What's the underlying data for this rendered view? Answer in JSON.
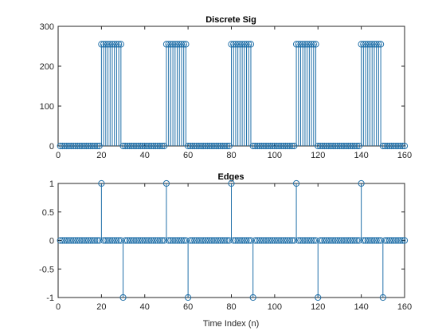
{
  "colors": {
    "series": "#1f6fa8",
    "axis": "#262626"
  },
  "chart_data": [
    {
      "type": "stem",
      "title": "Discrete Sig",
      "xlabel": "",
      "ylabel": "",
      "xlim": [
        0,
        160
      ],
      "ylim": [
        0,
        300
      ],
      "x_ticks": [
        0,
        20,
        40,
        60,
        80,
        100,
        120,
        140,
        160
      ],
      "y_ticks": [
        0,
        100,
        200,
        300
      ],
      "grid": false,
      "x": [
        1,
        2,
        3,
        4,
        5,
        6,
        7,
        8,
        9,
        10,
        11,
        12,
        13,
        14,
        15,
        16,
        17,
        18,
        19,
        20,
        21,
        22,
        23,
        24,
        25,
        26,
        27,
        28,
        29,
        30,
        31,
        32,
        33,
        34,
        35,
        36,
        37,
        38,
        39,
        40,
        41,
        42,
        43,
        44,
        45,
        46,
        47,
        48,
        49,
        50,
        51,
        52,
        53,
        54,
        55,
        56,
        57,
        58,
        59,
        60,
        61,
        62,
        63,
        64,
        65,
        66,
        67,
        68,
        69,
        70,
        71,
        72,
        73,
        74,
        75,
        76,
        77,
        78,
        79,
        80,
        81,
        82,
        83,
        84,
        85,
        86,
        87,
        88,
        89,
        90,
        91,
        92,
        93,
        94,
        95,
        96,
        97,
        98,
        99,
        100,
        101,
        102,
        103,
        104,
        105,
        106,
        107,
        108,
        109,
        110,
        111,
        112,
        113,
        114,
        115,
        116,
        117,
        118,
        119,
        120,
        121,
        122,
        123,
        124,
        125,
        126,
        127,
        128,
        129,
        130,
        131,
        132,
        133,
        134,
        135,
        136,
        137,
        138,
        139,
        140,
        141,
        142,
        143,
        144,
        145,
        146,
        147,
        148,
        149,
        150,
        151,
        152,
        153,
        154,
        155,
        156,
        157,
        158,
        159,
        160
      ],
      "values": [
        0,
        0,
        0,
        0,
        0,
        0,
        0,
        0,
        0,
        0,
        0,
        0,
        0,
        0,
        0,
        0,
        0,
        0,
        0,
        255,
        255,
        255,
        255,
        255,
        255,
        255,
        255,
        255,
        255,
        0,
        0,
        0,
        0,
        0,
        0,
        0,
        0,
        0,
        0,
        0,
        0,
        0,
        0,
        0,
        0,
        0,
        0,
        0,
        0,
        255,
        255,
        255,
        255,
        255,
        255,
        255,
        255,
        255,
        255,
        0,
        0,
        0,
        0,
        0,
        0,
        0,
        0,
        0,
        0,
        0,
        0,
        0,
        0,
        0,
        0,
        0,
        0,
        0,
        0,
        255,
        255,
        255,
        255,
        255,
        255,
        255,
        255,
        255,
        255,
        0,
        0,
        0,
        0,
        0,
        0,
        0,
        0,
        0,
        0,
        0,
        0,
        0,
        0,
        0,
        0,
        0,
        0,
        0,
        0,
        255,
        255,
        255,
        255,
        255,
        255,
        255,
        255,
        255,
        255,
        0,
        0,
        0,
        0,
        0,
        0,
        0,
        0,
        0,
        0,
        0,
        0,
        0,
        0,
        0,
        0,
        0,
        0,
        0,
        0,
        255,
        255,
        255,
        255,
        255,
        255,
        255,
        255,
        255,
        255,
        0,
        0,
        0,
        0,
        0,
        0,
        0,
        0,
        0,
        0,
        0
      ]
    },
    {
      "type": "stem",
      "title": "Edges",
      "xlabel": "Time Index (n)",
      "ylabel": "",
      "xlim": [
        0,
        160
      ],
      "ylim": [
        -1,
        1
      ],
      "x_ticks": [
        0,
        20,
        40,
        60,
        80,
        100,
        120,
        140,
        160
      ],
      "y_ticks": [
        -1,
        -0.5,
        0,
        0.5,
        1
      ],
      "grid": false,
      "x": [
        1,
        2,
        3,
        4,
        5,
        6,
        7,
        8,
        9,
        10,
        11,
        12,
        13,
        14,
        15,
        16,
        17,
        18,
        19,
        20,
        21,
        22,
        23,
        24,
        25,
        26,
        27,
        28,
        29,
        30,
        31,
        32,
        33,
        34,
        35,
        36,
        37,
        38,
        39,
        40,
        41,
        42,
        43,
        44,
        45,
        46,
        47,
        48,
        49,
        50,
        51,
        52,
        53,
        54,
        55,
        56,
        57,
        58,
        59,
        60,
        61,
        62,
        63,
        64,
        65,
        66,
        67,
        68,
        69,
        70,
        71,
        72,
        73,
        74,
        75,
        76,
        77,
        78,
        79,
        80,
        81,
        82,
        83,
        84,
        85,
        86,
        87,
        88,
        89,
        90,
        91,
        92,
        93,
        94,
        95,
        96,
        97,
        98,
        99,
        100,
        101,
        102,
        103,
        104,
        105,
        106,
        107,
        108,
        109,
        110,
        111,
        112,
        113,
        114,
        115,
        116,
        117,
        118,
        119,
        120,
        121,
        122,
        123,
        124,
        125,
        126,
        127,
        128,
        129,
        130,
        131,
        132,
        133,
        134,
        135,
        136,
        137,
        138,
        139,
        140,
        141,
        142,
        143,
        144,
        145,
        146,
        147,
        148,
        149,
        150,
        151,
        152,
        153,
        154,
        155,
        156,
        157,
        158,
        159,
        160
      ],
      "values": [
        0,
        0,
        0,
        0,
        0,
        0,
        0,
        0,
        0,
        0,
        0,
        0,
        0,
        0,
        0,
        0,
        0,
        0,
        0,
        1,
        0,
        0,
        0,
        0,
        0,
        0,
        0,
        0,
        0,
        -1,
        0,
        0,
        0,
        0,
        0,
        0,
        0,
        0,
        0,
        0,
        0,
        0,
        0,
        0,
        0,
        0,
        0,
        0,
        0,
        1,
        0,
        0,
        0,
        0,
        0,
        0,
        0,
        0,
        0,
        -1,
        0,
        0,
        0,
        0,
        0,
        0,
        0,
        0,
        0,
        0,
        0,
        0,
        0,
        0,
        0,
        0,
        0,
        0,
        0,
        1,
        0,
        0,
        0,
        0,
        0,
        0,
        0,
        0,
        0,
        -1,
        0,
        0,
        0,
        0,
        0,
        0,
        0,
        0,
        0,
        0,
        0,
        0,
        0,
        0,
        0,
        0,
        0,
        0,
        0,
        1,
        0,
        0,
        0,
        0,
        0,
        0,
        0,
        0,
        0,
        -1,
        0,
        0,
        0,
        0,
        0,
        0,
        0,
        0,
        0,
        0,
        0,
        0,
        0,
        0,
        0,
        0,
        0,
        0,
        0,
        1,
        0,
        0,
        0,
        0,
        0,
        0,
        0,
        0,
        0,
        -1,
        0,
        0,
        0,
        0,
        0,
        0,
        0,
        0,
        0,
        0
      ]
    }
  ]
}
